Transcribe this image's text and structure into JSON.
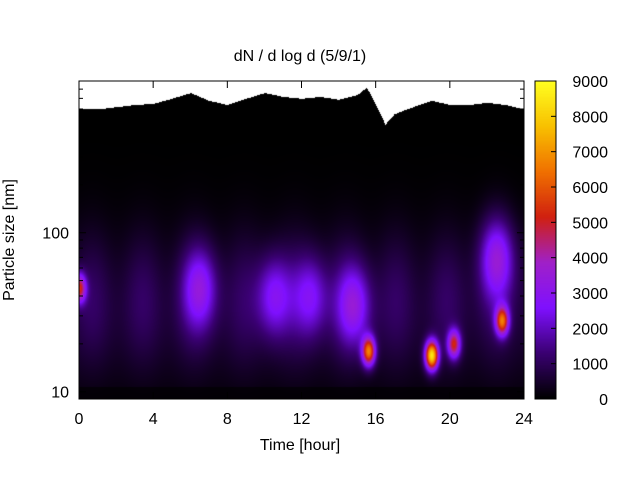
{
  "chart_data": {
    "type": "heatmap",
    "title": "dN / d log d (5/9/1)",
    "xlabel": "Time [hour]",
    "ylabel": "Particle size [nm]",
    "xlim": [
      0,
      24
    ],
    "xticks": [
      0,
      4,
      8,
      12,
      16,
      20,
      24
    ],
    "yscale": "log",
    "ylim": [
      9,
      900
    ],
    "yticks": [
      10,
      100
    ],
    "colorbar": {
      "min": 0,
      "max": 9000,
      "ticks": [
        0,
        1000,
        2000,
        3000,
        4000,
        5000,
        6000,
        7000,
        8000,
        9000
      ],
      "palette": [
        "#000000",
        "#3a0072",
        "#7f10ff",
        "#a020c8",
        "#d02010",
        "#f07000",
        "#f8c000",
        "#ffff20"
      ]
    },
    "upper_size_limit_nm": [
      [
        0,
        600
      ],
      [
        1,
        600
      ],
      [
        2,
        620
      ],
      [
        3,
        640
      ],
      [
        4,
        650
      ],
      [
        5,
        700
      ],
      [
        6,
        760
      ],
      [
        7,
        680
      ],
      [
        8,
        640
      ],
      [
        9,
        700
      ],
      [
        10,
        760
      ],
      [
        11,
        720
      ],
      [
        12,
        700
      ],
      [
        13,
        720
      ],
      [
        14,
        690
      ],
      [
        15,
        740
      ],
      [
        15.5,
        820
      ],
      [
        16,
        640
      ],
      [
        16.5,
        480
      ],
      [
        17,
        560
      ],
      [
        18,
        620
      ],
      [
        19,
        680
      ],
      [
        20,
        640
      ],
      [
        21,
        640
      ],
      [
        22,
        660
      ],
      [
        23,
        640
      ],
      [
        24,
        600
      ]
    ],
    "features": [
      {
        "time_h": 15.6,
        "size_nm": 18,
        "value": 6000
      },
      {
        "time_h": 19.0,
        "size_nm": 17,
        "value": 8000
      },
      {
        "time_h": 20.2,
        "size_nm": 20,
        "value": 4500
      },
      {
        "time_h": 22.8,
        "size_nm": 28,
        "value": 5500
      },
      {
        "time_h": 0.0,
        "size_nm": 45,
        "value": 4500
      },
      {
        "time_h": 6.5,
        "size_nm": 45,
        "value": 2400
      },
      {
        "time_h": 10.5,
        "size_nm": 40,
        "value": 2200
      },
      {
        "time_h": 12.5,
        "size_nm": 40,
        "value": 2000
      },
      {
        "time_h": 14.8,
        "size_nm": 35,
        "value": 2500
      },
      {
        "time_h": 22.5,
        "size_nm": 70,
        "value": 2800
      }
    ],
    "grid": false
  }
}
